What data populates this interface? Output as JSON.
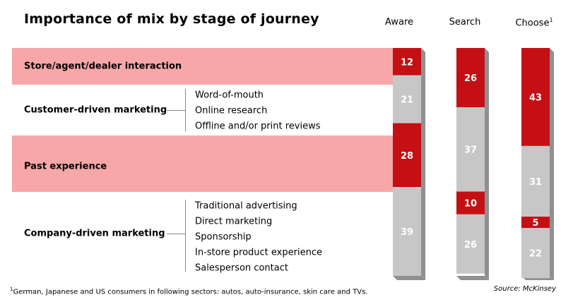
{
  "title": "Importance of mix by stage of journey",
  "colors": {
    "red": "#c40f14",
    "gray": "#c7c7c7",
    "shadow": "#909090",
    "band": "#f7a7a8"
  },
  "row_labels": {
    "store": "Store/agent/dealer interaction",
    "customer": "Customer-driven marketing",
    "past": "Past experience",
    "company": "Company-driven marketing"
  },
  "customer_items": [
    "Word-of-mouth",
    "Online research",
    "Offline and/or print reviews"
  ],
  "company_items": [
    "Traditional advertising",
    "Direct marketing",
    "Sponsorship",
    "In-store product experience",
    "Salesperson contact"
  ],
  "columns": {
    "aware": "Aware",
    "search": "Search",
    "choose": "Choose",
    "choose_footnote_mark": "1"
  },
  "footnote": {
    "mark": "1",
    "text": "German, Japanese and US consumers in following sectors: autos, auto-insurance, skin care and TVs."
  },
  "source": "Source: McKinsey",
  "chart_data": {
    "type": "bar",
    "stacked": true,
    "categories": [
      "Aware",
      "Search",
      "Choose"
    ],
    "series": [
      {
        "name": "Store/agent/dealer interaction",
        "values": [
          12,
          26,
          43
        ],
        "color": "#c40f14"
      },
      {
        "name": "Customer-driven marketing",
        "values": [
          21,
          37,
          31
        ],
        "color": "#c7c7c7"
      },
      {
        "name": "Past experience",
        "values": [
          28,
          10,
          5
        ],
        "color": "#c40f14"
      },
      {
        "name": "Company-driven marketing",
        "values": [
          39,
          26,
          22
        ],
        "color": "#c7c7c7"
      }
    ],
    "ylim": [
      0,
      100
    ]
  }
}
